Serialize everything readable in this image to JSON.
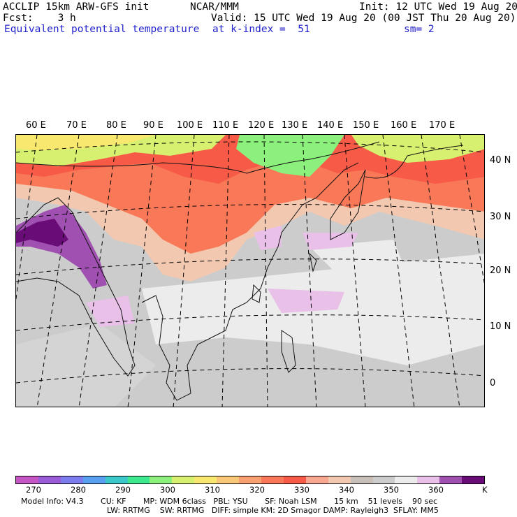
{
  "header": {
    "left_line1": "ACCLIP 15km ARW-GFS init",
    "center_line1": "NCAR/MMM",
    "right_line1": "Init: 12 UTC Wed 19 Aug 20",
    "left_line2": "Fcst:    3 h",
    "right_line2": "Valid: 15 UTC Wed 19 Aug 20 (00 JST Thu 20 Aug 20)",
    "left_line3": "Equivalent potential temperature",
    "center_line3": "at k-index =  51",
    "right_line3": "sm= 2"
  },
  "map": {
    "lon_labels": [
      "60 E",
      "70 E",
      "80 E",
      "90 E",
      "100 E",
      "110 E",
      "120 E",
      "130 E",
      "140 E",
      "150 E",
      "160 E",
      "170 E"
    ],
    "lat_labels": [
      "40 N",
      "30 N",
      "20 N",
      "10 N",
      "0"
    ]
  },
  "colorbar": {
    "colors": [
      "#c656c6",
      "#9a5cd6",
      "#7c7cee",
      "#5aa0f0",
      "#3cc8c8",
      "#3ee88e",
      "#8cf07c",
      "#d8f070",
      "#f8e870",
      "#f8c878",
      "#f8a070",
      "#f87858",
      "#f85a48",
      "#f8a890",
      "#f2c8b0",
      "#c8c0b8",
      "#cccccc",
      "#ececec",
      "#e8c0e8",
      "#a050b0",
      "#6a0c78"
    ],
    "labels": [
      "270",
      "280",
      "290",
      "300",
      "310",
      "320",
      "330",
      "340",
      "350",
      "360"
    ],
    "unit": "K"
  },
  "footer": {
    "line1": "Model Info: V4.3       CU: KF       MP: WDM 6class   PBL: YSU       SF: Noah LSM       15 km    51 levels    90 sec",
    "line2": "LW: RRTMG    SW: RRTMG   DIFF: simple KM: 2D Smagor DAMP: Rayleigh3  SFLAY: MM5"
  }
}
